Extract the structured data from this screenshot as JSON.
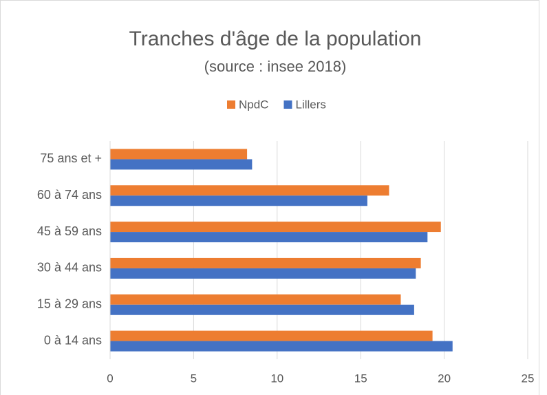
{
  "chart_data": {
    "type": "bar",
    "orientation": "horizontal",
    "title": "Tranches d'âge de la population",
    "subtitle": "(source : insee 2018)",
    "categories": [
      "0 à 14 ans",
      "15 à 29 ans",
      "30 à 44 ans",
      "45 à 59 ans",
      "60 à 74 ans",
      "75 ans et +"
    ],
    "series": [
      {
        "name": "NpdC",
        "color": "#ed7d31",
        "values": [
          19.3,
          17.4,
          18.6,
          19.8,
          16.7,
          8.2
        ]
      },
      {
        "name": "Lillers",
        "color": "#4472c4",
        "values": [
          20.5,
          18.2,
          18.3,
          19.0,
          15.4,
          8.5
        ]
      }
    ],
    "xlim": [
      0,
      25
    ],
    "xticks": [
      0,
      5,
      10,
      15,
      20,
      25
    ],
    "grid": true,
    "legend": "top"
  }
}
